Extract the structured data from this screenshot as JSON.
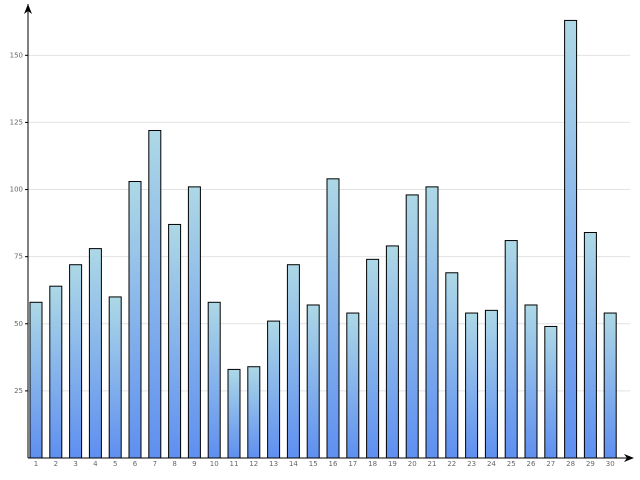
{
  "chart_data": {
    "type": "bar",
    "categories": [
      "1",
      "2",
      "3",
      "4",
      "5",
      "6",
      "7",
      "8",
      "9",
      "10",
      "11",
      "12",
      "13",
      "14",
      "15",
      "16",
      "17",
      "18",
      "19",
      "20",
      "21",
      "22",
      "23",
      "24",
      "25",
      "26",
      "27",
      "28",
      "29",
      "30"
    ],
    "values": [
      58,
      64,
      72,
      78,
      60,
      103,
      122,
      87,
      101,
      58,
      33,
      34,
      51,
      72,
      57,
      104,
      54,
      74,
      79,
      98,
      101,
      69,
      54,
      55,
      81,
      57,
      49,
      163,
      84,
      54
    ],
    "gradient": [
      "#add8e6",
      "#5f8ff0"
    ],
    "ylim": [
      0,
      168
    ],
    "yticks": [
      25,
      50,
      75,
      100,
      125,
      150
    ],
    "grid": true
  }
}
